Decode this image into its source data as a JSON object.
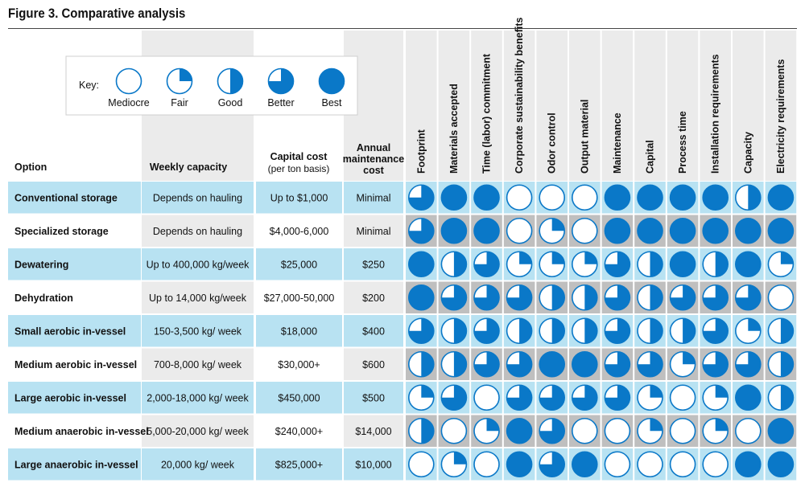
{
  "title": "Figure 3. Comparative analysis",
  "colors": {
    "blue": "#0a78c8",
    "row_blue": "#b8e2f2",
    "row_gray": "#ebebeb",
    "col_gray": "#d9d9d9",
    "rating_bg": "#bfbfbf"
  },
  "key": {
    "label": "Key:",
    "items": [
      {
        "label": "Mediocre",
        "value": 0
      },
      {
        "label": "Fair",
        "value": 1
      },
      {
        "label": "Good",
        "value": 2
      },
      {
        "label": "Better",
        "value": 3
      },
      {
        "label": "Best",
        "value": 4
      }
    ]
  },
  "chart_data": {
    "type": "table",
    "headers": {
      "option": "Option",
      "weekly": "Weekly capacity",
      "capital_line1": "Capital cost",
      "capital_line2": "(per ton basis)",
      "maint_line1": "Annual",
      "maint_line2": "maintenance",
      "maint_line3": "cost"
    },
    "criteria": [
      "Footprint",
      "Materials accepted",
      "Time (labor) commitment",
      "Corporate sustainability benefits",
      "Odor control",
      "Output material",
      "Maintenance",
      "Capital",
      "Process time",
      "Installation requirements",
      "Capacity",
      "Electricity requirements"
    ],
    "rows": [
      {
        "option": "Conventional storage",
        "weekly": "Depends on hauling",
        "capital": "Up to $1,000",
        "maint": "Minimal",
        "ratings": [
          3,
          4,
          4,
          0,
          0,
          0,
          4,
          4,
          4,
          4,
          2,
          4
        ]
      },
      {
        "option": "Specialized storage",
        "weekly": "Depends on hauling",
        "capital": "$4,000-6,000",
        "maint": "Minimal",
        "ratings": [
          3,
          4,
          4,
          0,
          1,
          0,
          4,
          4,
          4,
          4,
          4,
          4
        ]
      },
      {
        "option": "Dewatering",
        "weekly": "Up to 400,000 kg/week",
        "capital": "$25,000",
        "maint": "$250",
        "ratings": [
          4,
          2,
          3,
          1,
          1,
          1,
          3,
          2,
          4,
          2,
          4,
          1
        ]
      },
      {
        "option": "Dehydration",
        "weekly": "Up to 14,000 kg/week",
        "capital": "$27,000-50,000",
        "maint": "$200",
        "ratings": [
          4,
          3,
          3,
          3,
          2,
          2,
          3,
          2,
          3,
          3,
          3,
          0
        ]
      },
      {
        "option": "Small aerobic in-vessel",
        "weekly": "150-3,500 kg/ week",
        "capital": "$18,000",
        "maint": "$400",
        "ratings": [
          3,
          2,
          3,
          2,
          2,
          2,
          3,
          2,
          2,
          3,
          1,
          2
        ]
      },
      {
        "option": "Medium aerobic in-vessel",
        "weekly": "700-8,000 kg/ week",
        "capital": "$30,000+",
        "maint": "$600",
        "ratings": [
          2,
          2,
          3,
          3,
          4,
          4,
          3,
          3,
          1,
          3,
          3,
          2
        ]
      },
      {
        "option": "Large aerobic in-vessel",
        "weekly": "2,000-18,000 kg/ week",
        "capital": "$450,000",
        "maint": "$500",
        "ratings": [
          1,
          3,
          0,
          3,
          3,
          3,
          3,
          1,
          0,
          1,
          4,
          2
        ]
      },
      {
        "option": "Medium anaerobic in-vessel",
        "weekly": "5,000-20,000 kg/ week",
        "capital": "$240,000+",
        "maint": "$14,000",
        "ratings": [
          2,
          0,
          1,
          4,
          3,
          0,
          0,
          1,
          0,
          1,
          0,
          4
        ]
      },
      {
        "option": "Large anaerobic in-vessel",
        "weekly": "20,000 kg/ week",
        "capital": "$825,000+",
        "maint": "$10,000",
        "ratings": [
          0,
          1,
          0,
          4,
          3,
          4,
          0,
          0,
          0,
          0,
          4,
          4
        ]
      }
    ]
  }
}
